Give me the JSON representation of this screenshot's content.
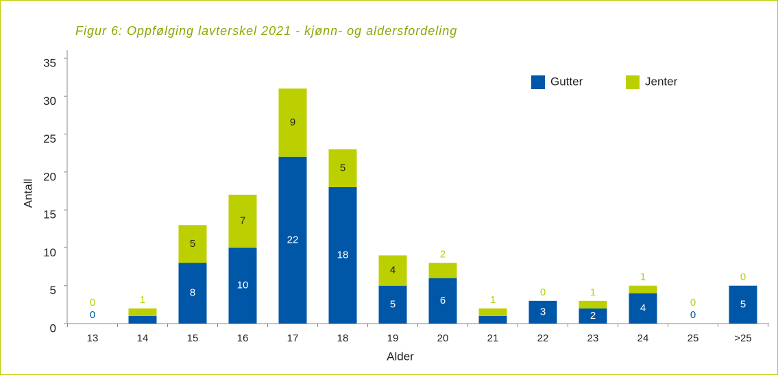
{
  "chart_data": {
    "type": "stacked_bar",
    "title": "Figur 6: Oppfølging lavterskel 2021 - kjønn- og aldersfordeling",
    "x_label": "Alder",
    "y_label": "Antall",
    "categories": [
      "13",
      "14",
      "15",
      "16",
      "17",
      "18",
      "19",
      "20",
      "21",
      "22",
      "23",
      "24",
      "25",
      ">25"
    ],
    "series": [
      {
        "name": "Gutter",
        "color": "#0057a8",
        "values": [
          0,
          1,
          8,
          10,
          22,
          18,
          5,
          6,
          1,
          3,
          2,
          4,
          0,
          5
        ]
      },
      {
        "name": "Jenter",
        "color": "#bccf00",
        "values": [
          0,
          1,
          5,
          7,
          9,
          5,
          4,
          2,
          1,
          0,
          1,
          1,
          0,
          0
        ]
      }
    ],
    "ylim": [
      0,
      35
    ],
    "yticks": [
      0,
      5,
      10,
      15,
      20,
      25,
      30,
      35
    ],
    "legend": "top-right"
  }
}
